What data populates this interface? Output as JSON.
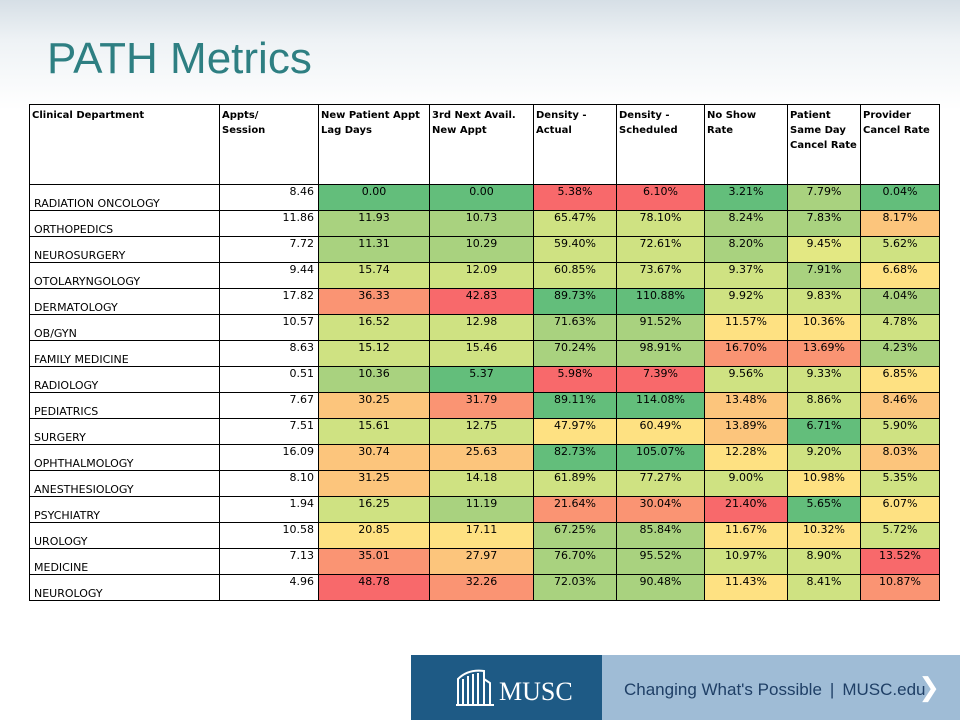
{
  "title": "PATH Metrics",
  "table": {
    "headers": [
      "Clinical Department",
      "Appts/\nSession",
      "New Patient Appt\nLag Days",
      "3rd Next Avail.\nNew Appt",
      "Density -\nActual",
      "Density -\nScheduled",
      "No Show Rate",
      "Patient\nSame Day\nCancel Rate",
      "Provider\nCancel Rate"
    ],
    "rows": [
      {
        "dept": "RADIATION ONCOLOGY",
        "appts": "8.46",
        "cells": [
          {
            "v": "0.00",
            "c": "#63be7b"
          },
          {
            "v": "0.00",
            "c": "#63be7b"
          },
          {
            "v": "5.38%",
            "c": "#f8696b"
          },
          {
            "v": "6.10%",
            "c": "#f8696b"
          },
          {
            "v": "3.21%",
            "c": "#63be7b"
          },
          {
            "v": "7.79%",
            "c": "#a9d27f"
          },
          {
            "v": "0.04%",
            "c": "#63be7b"
          }
        ]
      },
      {
        "dept": "ORTHOPEDICS",
        "appts": "11.86",
        "cells": [
          {
            "v": "11.93",
            "c": "#a9d27f"
          },
          {
            "v": "10.73",
            "c": "#a9d27f"
          },
          {
            "v": "65.47%",
            "c": "#cfe282"
          },
          {
            "v": "78.10%",
            "c": "#cfe282"
          },
          {
            "v": "8.24%",
            "c": "#a9d27f"
          },
          {
            "v": "7.83%",
            "c": "#a9d27f"
          },
          {
            "v": "8.17%",
            "c": "#fcc57c"
          }
        ]
      },
      {
        "dept": "NEUROSURGERY",
        "appts": "7.72",
        "cells": [
          {
            "v": "11.31",
            "c": "#a9d27f"
          },
          {
            "v": "10.29",
            "c": "#a9d27f"
          },
          {
            "v": "59.40%",
            "c": "#cfe282"
          },
          {
            "v": "72.61%",
            "c": "#cfe282"
          },
          {
            "v": "8.20%",
            "c": "#a9d27f"
          },
          {
            "v": "9.45%",
            "c": "#e3e883"
          },
          {
            "v": "5.62%",
            "c": "#cfe282"
          }
        ]
      },
      {
        "dept": "OTOLARYNGOLOGY",
        "appts": "9.44",
        "cells": [
          {
            "v": "15.74",
            "c": "#cfe282"
          },
          {
            "v": "12.09",
            "c": "#cfe282"
          },
          {
            "v": "60.85%",
            "c": "#cfe282"
          },
          {
            "v": "73.67%",
            "c": "#cfe282"
          },
          {
            "v": "9.37%",
            "c": "#cfe282"
          },
          {
            "v": "7.91%",
            "c": "#a9d27f"
          },
          {
            "v": "6.68%",
            "c": "#fee182"
          }
        ]
      },
      {
        "dept": "DERMATOLOGY",
        "appts": "17.82",
        "cells": [
          {
            "v": "36.33",
            "c": "#fa9473"
          },
          {
            "v": "42.83",
            "c": "#f8696b"
          },
          {
            "v": "89.73%",
            "c": "#63be7b"
          },
          {
            "v": "110.88%",
            "c": "#63be7b"
          },
          {
            "v": "9.92%",
            "c": "#cfe282"
          },
          {
            "v": "9.83%",
            "c": "#cfe282"
          },
          {
            "v": "4.04%",
            "c": "#a9d27f"
          }
        ]
      },
      {
        "dept": "OB/GYN",
        "appts": "10.57",
        "cells": [
          {
            "v": "16.52",
            "c": "#cfe282"
          },
          {
            "v": "12.98",
            "c": "#cfe282"
          },
          {
            "v": "71.63%",
            "c": "#a9d27f"
          },
          {
            "v": "91.52%",
            "c": "#a9d27f"
          },
          {
            "v": "11.57%",
            "c": "#fee182"
          },
          {
            "v": "10.36%",
            "c": "#fee182"
          },
          {
            "v": "4.78%",
            "c": "#cfe282"
          }
        ]
      },
      {
        "dept": "FAMILY MEDICINE",
        "appts": "8.63",
        "cells": [
          {
            "v": "15.12",
            "c": "#cfe282"
          },
          {
            "v": "15.46",
            "c": "#cfe282"
          },
          {
            "v": "70.24%",
            "c": "#a9d27f"
          },
          {
            "v": "98.91%",
            "c": "#a9d27f"
          },
          {
            "v": "16.70%",
            "c": "#fa9473"
          },
          {
            "v": "13.69%",
            "c": "#fa9473"
          },
          {
            "v": "4.23%",
            "c": "#a9d27f"
          }
        ]
      },
      {
        "dept": "RADIOLOGY",
        "appts": "0.51",
        "cells": [
          {
            "v": "10.36",
            "c": "#a9d27f"
          },
          {
            "v": "5.37",
            "c": "#63be7b"
          },
          {
            "v": "5.98%",
            "c": "#f8696b"
          },
          {
            "v": "7.39%",
            "c": "#f8696b"
          },
          {
            "v": "9.56%",
            "c": "#cfe282"
          },
          {
            "v": "9.33%",
            "c": "#cfe282"
          },
          {
            "v": "6.85%",
            "c": "#fee182"
          }
        ]
      },
      {
        "dept": "PEDIATRICS",
        "appts": "7.67",
        "cells": [
          {
            "v": "30.25",
            "c": "#fcc57c"
          },
          {
            "v": "31.79",
            "c": "#fa9473"
          },
          {
            "v": "89.11%",
            "c": "#63be7b"
          },
          {
            "v": "114.08%",
            "c": "#63be7b"
          },
          {
            "v": "13.48%",
            "c": "#fcc57c"
          },
          {
            "v": "8.86%",
            "c": "#cfe282"
          },
          {
            "v": "8.46%",
            "c": "#fcc57c"
          }
        ]
      },
      {
        "dept": "SURGERY",
        "appts": "7.51",
        "cells": [
          {
            "v": "15.61",
            "c": "#cfe282"
          },
          {
            "v": "12.75",
            "c": "#cfe282"
          },
          {
            "v": "47.97%",
            "c": "#fee182"
          },
          {
            "v": "60.49%",
            "c": "#fee182"
          },
          {
            "v": "13.89%",
            "c": "#fcc57c"
          },
          {
            "v": "6.71%",
            "c": "#63be7b"
          },
          {
            "v": "5.90%",
            "c": "#cfe282"
          }
        ]
      },
      {
        "dept": "OPHTHALMOLOGY",
        "appts": "16.09",
        "cells": [
          {
            "v": "30.74",
            "c": "#fcc57c"
          },
          {
            "v": "25.63",
            "c": "#fcc57c"
          },
          {
            "v": "82.73%",
            "c": "#63be7b"
          },
          {
            "v": "105.07%",
            "c": "#63be7b"
          },
          {
            "v": "12.28%",
            "c": "#fee182"
          },
          {
            "v": "9.20%",
            "c": "#cfe282"
          },
          {
            "v": "8.03%",
            "c": "#fcc57c"
          }
        ]
      },
      {
        "dept": "ANESTHESIOLOGY",
        "appts": "8.10",
        "cells": [
          {
            "v": "31.25",
            "c": "#fcc57c"
          },
          {
            "v": "14.18",
            "c": "#cfe282"
          },
          {
            "v": "61.89%",
            "c": "#cfe282"
          },
          {
            "v": "77.27%",
            "c": "#cfe282"
          },
          {
            "v": "9.00%",
            "c": "#cfe282"
          },
          {
            "v": "10.98%",
            "c": "#fee182"
          },
          {
            "v": "5.35%",
            "c": "#cfe282"
          }
        ]
      },
      {
        "dept": "PSYCHIATRY",
        "appts": "1.94",
        "cells": [
          {
            "v": "16.25",
            "c": "#cfe282"
          },
          {
            "v": "11.19",
            "c": "#a9d27f"
          },
          {
            "v": "21.64%",
            "c": "#fa9473"
          },
          {
            "v": "30.04%",
            "c": "#fa9473"
          },
          {
            "v": "21.40%",
            "c": "#f8696b"
          },
          {
            "v": "5.65%",
            "c": "#63be7b"
          },
          {
            "v": "6.07%",
            "c": "#fee182"
          }
        ]
      },
      {
        "dept": "UROLOGY",
        "appts": "10.58",
        "cells": [
          {
            "v": "20.85",
            "c": "#fee182"
          },
          {
            "v": "17.11",
            "c": "#fee182"
          },
          {
            "v": "67.25%",
            "c": "#a9d27f"
          },
          {
            "v": "85.84%",
            "c": "#a9d27f"
          },
          {
            "v": "11.67%",
            "c": "#fee182"
          },
          {
            "v": "10.32%",
            "c": "#fee182"
          },
          {
            "v": "5.72%",
            "c": "#cfe282"
          }
        ]
      },
      {
        "dept": "MEDICINE",
        "appts": "7.13",
        "cells": [
          {
            "v": "35.01",
            "c": "#fa9473"
          },
          {
            "v": "27.97",
            "c": "#fcc57c"
          },
          {
            "v": "76.70%",
            "c": "#a9d27f"
          },
          {
            "v": "95.52%",
            "c": "#a9d27f"
          },
          {
            "v": "10.97%",
            "c": "#cfe282"
          },
          {
            "v": "8.90%",
            "c": "#cfe282"
          },
          {
            "v": "13.52%",
            "c": "#f8696b"
          }
        ]
      },
      {
        "dept": "NEUROLOGY",
        "appts": "4.96",
        "cells": [
          {
            "v": "48.78",
            "c": "#f8696b"
          },
          {
            "v": "32.26",
            "c": "#fa9473"
          },
          {
            "v": "72.03%",
            "c": "#a9d27f"
          },
          {
            "v": "90.48%",
            "c": "#a9d27f"
          },
          {
            "v": "11.43%",
            "c": "#fee182"
          },
          {
            "v": "8.41%",
            "c": "#cfe282"
          },
          {
            "v": "10.87%",
            "c": "#fa9473"
          }
        ]
      }
    ]
  },
  "footer": {
    "logo_text": "MUSC",
    "tagline": "Changing What's Possible",
    "separator": "|",
    "site": "MUSC.edu",
    "next_glyph": "❯",
    "brand_dark": "#1e5a85",
    "brand_light": "#9fbcd6"
  }
}
